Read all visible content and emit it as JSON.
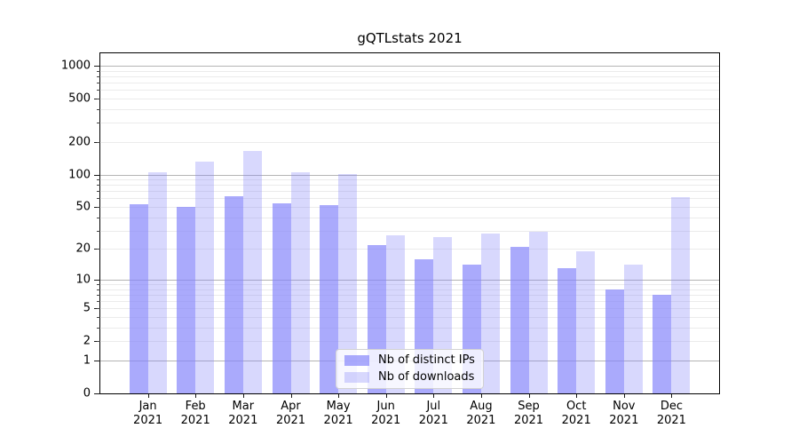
{
  "chart_data": {
    "type": "bar",
    "title": "gQTLstats 2021",
    "x_year": "2021",
    "categories": [
      "Jan",
      "Feb",
      "Mar",
      "Apr",
      "May",
      "Jun",
      "Jul",
      "Aug",
      "Sep",
      "Oct",
      "Nov",
      "Dec"
    ],
    "series": [
      {
        "name": "Nb of distinct IPs",
        "color": "rgba(130,130,250,0.68)",
        "values": [
          53,
          50,
          63,
          54,
          52,
          22,
          16,
          14,
          21,
          13,
          8,
          7
        ]
      },
      {
        "name": "Nb of downloads",
        "color": "rgba(130,130,250,0.31)",
        "values": [
          105,
          132,
          166,
          105,
          101,
          27,
          26,
          28,
          29,
          19,
          14,
          62
        ]
      }
    ],
    "y_ticks": [
      0,
      1,
      2,
      5,
      10,
      20,
      50,
      100,
      200,
      500,
      1000
    ],
    "y_scale": "log10(1+v)",
    "ylim": [
      0,
      1300
    ],
    "grid": "horizontal only, major lines at powers of 10, faint minors at 2-9 per decade",
    "legend_position": "lower center inside plot"
  },
  "colors": {
    "bar_distinct_ips": "rgba(130,130,250,0.68)",
    "bar_downloads": "rgba(130,130,250,0.31)",
    "grid_major": "#b4b4b4",
    "grid_minor": "#ebebeb",
    "spine": "#000000",
    "legend_border": "#d2d2d2"
  }
}
